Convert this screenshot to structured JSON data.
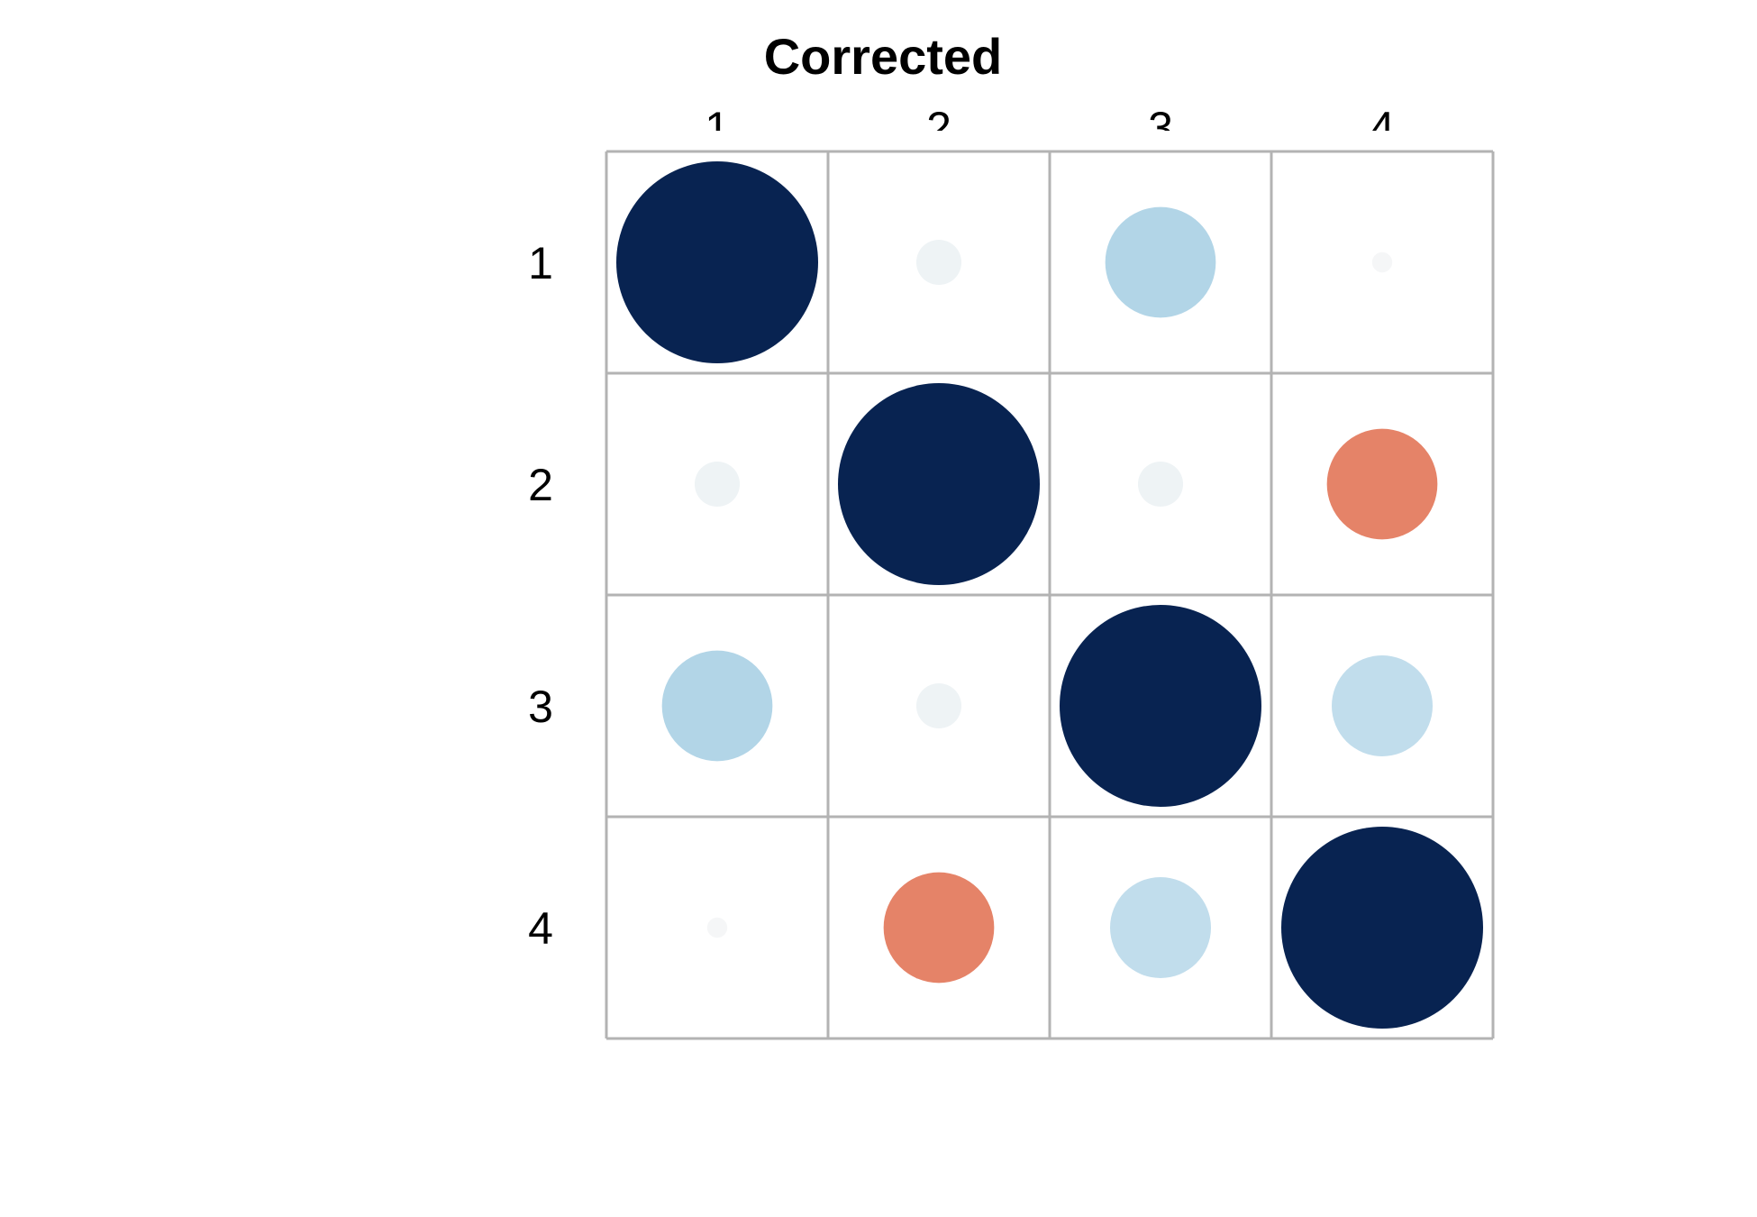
{
  "chart_data": {
    "type": "heatmap",
    "title": "Corrected",
    "col_labels": [
      "1",
      "2",
      "3",
      "4"
    ],
    "row_labels": [
      "1",
      "2",
      "3",
      "4"
    ],
    "value_range": [
      -1,
      1
    ],
    "matrix": [
      [
        1.0,
        0.05,
        0.3,
        0.01
      ],
      [
        0.05,
        1.0,
        0.05,
        -0.3
      ],
      [
        0.3,
        0.05,
        1.0,
        0.25
      ],
      [
        0.01,
        -0.3,
        0.25,
        1.0
      ]
    ],
    "grid": true,
    "legend": "none"
  }
}
